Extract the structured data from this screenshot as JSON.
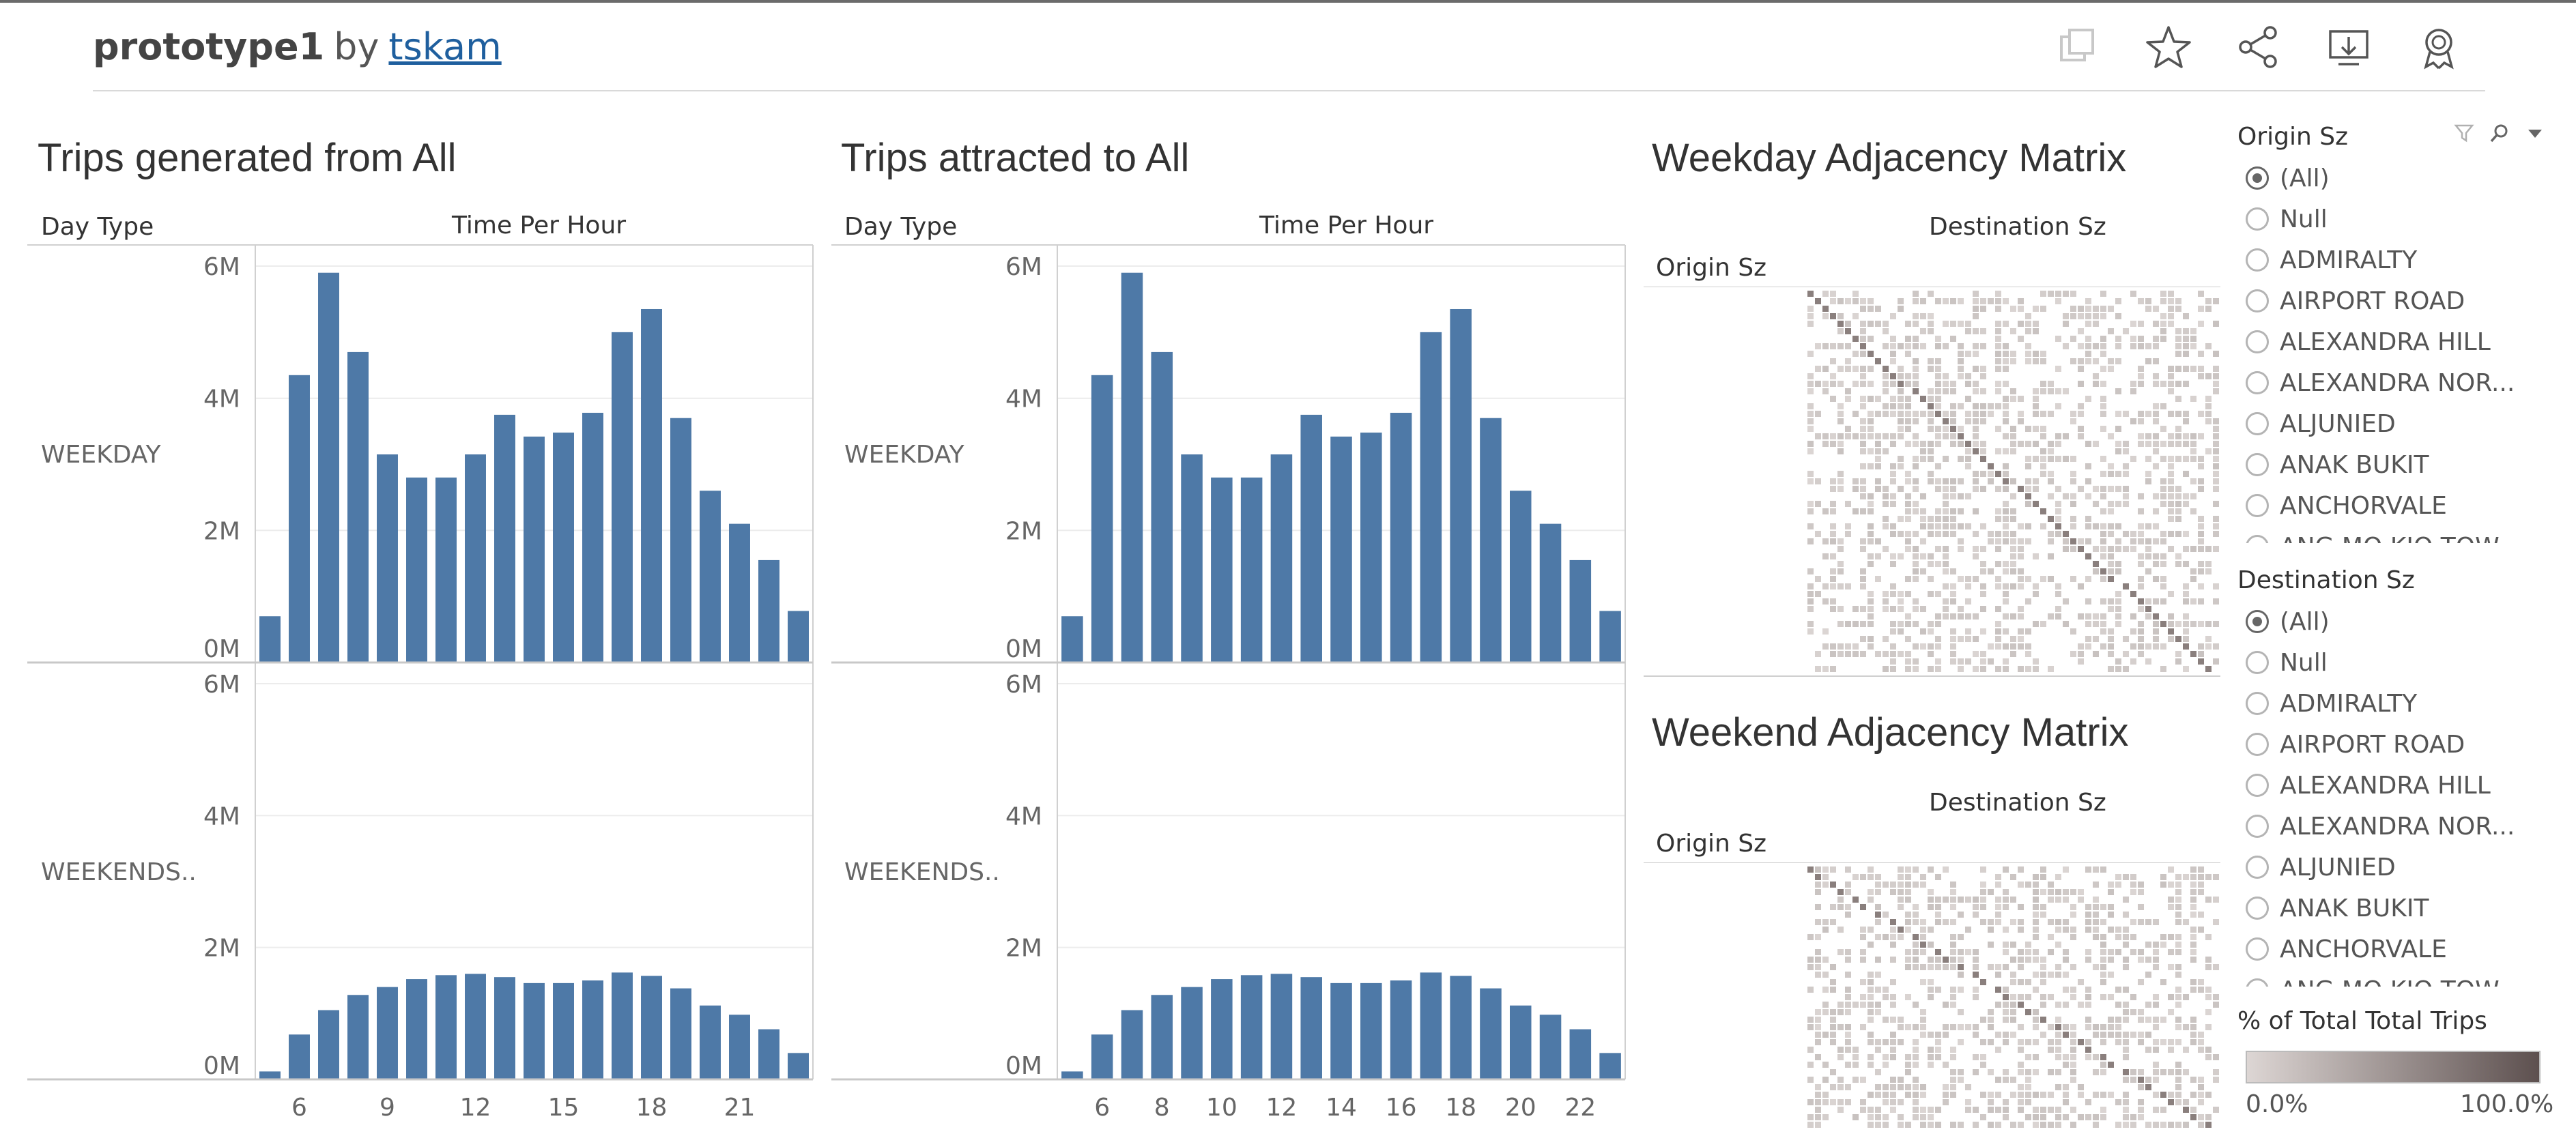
{
  "header": {
    "workbook_name": "prototype1",
    "by_label": "by",
    "author": "tskam",
    "icons": [
      "duplicate-icon",
      "favorite-star-icon",
      "share-icon",
      "download-icon",
      "metrics-badge-icon"
    ]
  },
  "charts": {
    "generated": {
      "title": "Trips generated from All",
      "row_header": "Day Type",
      "column_header": "Time Per Hour",
      "rows": [
        "WEEKDAY",
        "WEEKENDS.."
      ]
    },
    "attracted": {
      "title": "Trips attracted to All",
      "row_header": "Day Type",
      "column_header": "Time Per Hour",
      "rows": [
        "WEEKDAY",
        "WEEKENDS.."
      ]
    }
  },
  "matrices": {
    "weekday": {
      "title": "Weekday Adjacency Matrix",
      "column_header": "Destination Sz",
      "row_header": "Origin Sz"
    },
    "weekend": {
      "title": "Weekend Adjacency Matrix",
      "column_header": "Destination Sz",
      "row_header": "Origin Sz"
    }
  },
  "filters": {
    "origin": {
      "title": "Origin Sz",
      "selected": "(All)",
      "options": [
        "(All)",
        "Null",
        "ADMIRALTY",
        "AIRPORT ROAD",
        "ALEXANDRA HILL",
        "ALEXANDRA NOR...",
        "ALJUNIED",
        "ANAK BUKIT",
        "ANCHORVALE",
        "ANG MO KIO TOW..."
      ]
    },
    "destination": {
      "title": "Destination Sz",
      "selected": "(All)",
      "options": [
        "(All)",
        "Null",
        "ADMIRALTY",
        "AIRPORT ROAD",
        "ALEXANDRA HILL",
        "ALEXANDRA NOR...",
        "ALJUNIED",
        "ANAK BUKIT",
        "ANCHORVALE",
        "ANG MO KIO TOW..."
      ]
    }
  },
  "legend": {
    "title": "% of Total Total Trips",
    "min_label": "0.0%",
    "max_label": "100.0%",
    "color_low": "#ddd6d4",
    "color_high": "#5d504f"
  },
  "colors": {
    "bar": "#4e79a7",
    "accent_link": "#1f5f9e"
  },
  "chart_data": [
    {
      "type": "bar",
      "x": [
        5,
        6,
        7,
        8,
        9,
        10,
        11,
        12,
        13,
        14,
        15,
        16,
        17,
        18,
        19,
        20,
        21,
        22,
        23
      ],
      "series": [
        {
          "name": "WEEKDAY",
          "values": [
            0.7,
            4.35,
            5.9,
            4.7,
            3.15,
            2.8,
            2.8,
            3.15,
            3.75,
            3.42,
            3.48,
            3.78,
            5.0,
            5.35,
            3.7,
            2.6,
            2.1,
            1.55,
            0.78
          ]
        },
        {
          "name": "WEEKENDS..",
          "values": [
            0.12,
            0.68,
            1.05,
            1.28,
            1.4,
            1.52,
            1.58,
            1.6,
            1.55,
            1.46,
            1.46,
            1.5,
            1.62,
            1.57,
            1.38,
            1.12,
            0.98,
            0.76,
            0.4
          ]
        }
      ],
      "title": "Trips generated from All",
      "xlabel": "Time Per Hour",
      "ylabel": "Day Type",
      "ylim": [
        0,
        6.3
      ],
      "yticks": [
        "0M",
        "2M",
        "4M",
        "6M"
      ],
      "xtick_labels": [
        "6",
        "9",
        "12",
        "15",
        "18",
        "21"
      ],
      "xtick_values": [
        6,
        9,
        12,
        15,
        18,
        21
      ],
      "grid": true
    },
    {
      "type": "bar",
      "x": [
        5,
        6,
        7,
        8,
        9,
        10,
        11,
        12,
        13,
        14,
        15,
        16,
        17,
        18,
        19,
        20,
        21,
        22,
        23
      ],
      "series": [
        {
          "name": "WEEKDAY",
          "values": [
            0.7,
            4.35,
            5.9,
            4.7,
            3.15,
            2.8,
            2.8,
            3.15,
            3.75,
            3.42,
            3.48,
            3.78,
            5.0,
            5.35,
            3.7,
            2.6,
            2.1,
            1.55,
            0.78
          ]
        },
        {
          "name": "WEEKENDS..",
          "values": [
            0.12,
            0.68,
            1.05,
            1.28,
            1.4,
            1.52,
            1.58,
            1.6,
            1.55,
            1.46,
            1.46,
            1.5,
            1.62,
            1.57,
            1.38,
            1.12,
            0.98,
            0.76,
            0.4
          ]
        }
      ],
      "title": "Trips attracted to All",
      "xlabel": "Time Per Hour",
      "ylabel": "Day Type",
      "ylim": [
        0,
        6.3
      ],
      "yticks": [
        "0M",
        "2M",
        "4M",
        "6M"
      ],
      "xtick_labels": [
        "6",
        "8",
        "10",
        "12",
        "14",
        "16",
        "18",
        "20",
        "22"
      ],
      "xtick_values": [
        6,
        8,
        10,
        12,
        14,
        16,
        18,
        20,
        22
      ],
      "grid": true
    }
  ]
}
